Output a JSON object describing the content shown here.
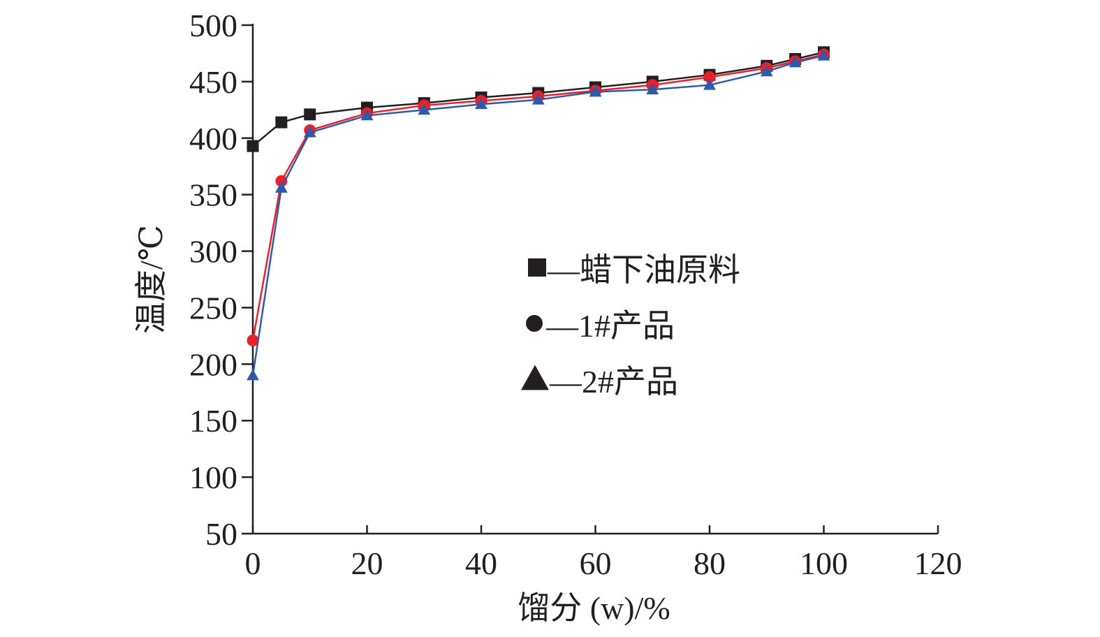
{
  "chart_data": {
    "type": "line",
    "title": "",
    "xlabel": "馏分 (w)/%",
    "ylabel": "温度/℃",
    "xlim": [
      0,
      120
    ],
    "ylim": [
      50,
      500
    ],
    "xticks": [
      0,
      20,
      40,
      60,
      80,
      100,
      120
    ],
    "yticks": [
      50,
      100,
      150,
      200,
      250,
      300,
      350,
      400,
      450,
      500
    ],
    "grid": false,
    "legend_position": "center-right",
    "x": [
      0,
      5,
      10,
      20,
      30,
      40,
      50,
      60,
      70,
      80,
      90,
      95,
      100
    ],
    "series": [
      {
        "name": "蜡下油原料",
        "legend_label": "—蜡下油原料",
        "marker": "square",
        "color": "#231f20",
        "values": [
          393,
          414,
          421,
          427,
          431,
          436,
          440,
          445,
          450,
          456,
          464,
          470,
          476
        ]
      },
      {
        "name": "1#产品",
        "legend_label": "—1#产品",
        "marker": "circle",
        "color": "#e8202a",
        "marker_legend_color": "#231f20",
        "values": [
          221,
          362,
          407,
          422,
          429,
          433,
          437,
          442,
          447,
          454,
          462,
          468,
          474
        ]
      },
      {
        "name": "2#产品",
        "legend_label": "—2#产品",
        "marker": "triangle",
        "color": "#2f5aa8",
        "marker_legend_color": "#231f20",
        "values": [
          190,
          356,
          405,
          420,
          425,
          430,
          434,
          441,
          443,
          447,
          459,
          467,
          473
        ]
      }
    ]
  }
}
